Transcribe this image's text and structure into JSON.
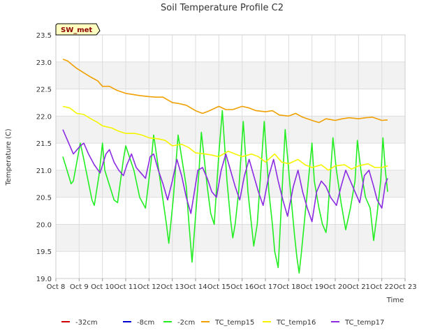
{
  "chart_data": {
    "type": "line",
    "title": "Soil Temperature Profile C2",
    "xlabel": "Time",
    "ylabel": "Temperature (C)",
    "site_label": "SW_met",
    "xlim": [
      8,
      23
    ],
    "ylim": [
      19.0,
      23.5
    ],
    "x_ticks": [
      {
        "value": 8,
        "label": "Oct 8"
      },
      {
        "value": 9,
        "label": "Oct 9"
      },
      {
        "value": 10,
        "label": "Oct 10"
      },
      {
        "value": 11,
        "label": "Oct 11"
      },
      {
        "value": 12,
        "label": "Oct 12"
      },
      {
        "value": 13,
        "label": "Oct 13"
      },
      {
        "value": 14,
        "label": "Oct 14"
      },
      {
        "value": 15,
        "label": "Oct 15"
      },
      {
        "value": 16,
        "label": "Oct 16"
      },
      {
        "value": 17,
        "label": "Oct 17"
      },
      {
        "value": 18,
        "label": "Oct 18"
      },
      {
        "value": 19,
        "label": "Oct 19"
      },
      {
        "value": 20,
        "label": "Oct 20"
      },
      {
        "value": 21,
        "label": "Oct 21"
      },
      {
        "value": 22,
        "label": "Oct 22"
      },
      {
        "value": 23,
        "label": "Oct 23"
      }
    ],
    "y_ticks": [
      {
        "value": 19.0,
        "label": "19.0"
      },
      {
        "value": 19.5,
        "label": "19.5"
      },
      {
        "value": 20.0,
        "label": "20.0"
      },
      {
        "value": 20.5,
        "label": "20.5"
      },
      {
        "value": 21.0,
        "label": "21.0"
      },
      {
        "value": 21.5,
        "label": "21.5"
      },
      {
        "value": 22.0,
        "label": "22.0"
      },
      {
        "value": 22.5,
        "label": "22.5"
      },
      {
        "value": 23.0,
        "label": "23.0"
      },
      {
        "value": 23.5,
        "label": "23.5"
      }
    ],
    "grid": true,
    "legend_position": "bottom",
    "series": [
      {
        "name": "-32cm",
        "color": "#cc0000",
        "x": [],
        "y": []
      },
      {
        "name": "-8cm",
        "color": "#0000cc",
        "x": [],
        "y": []
      },
      {
        "name": "-2cm",
        "color": "#22ee22",
        "x": [
          8.3,
          8.55,
          8.65,
          8.75,
          9.05,
          9.2,
          9.55,
          9.65,
          9.85,
          10.0,
          10.1,
          10.5,
          10.65,
          10.9,
          11.0,
          11.35,
          11.6,
          11.85,
          12.1,
          12.2,
          12.55,
          12.75,
          12.85,
          13.05,
          13.25,
          13.6,
          13.7,
          13.85,
          14.15,
          14.25,
          14.5,
          14.65,
          14.8,
          15.0,
          15.15,
          15.35,
          15.5,
          15.6,
          15.7,
          15.85,
          16.05,
          16.25,
          16.4,
          16.5,
          16.65,
          16.95,
          17.15,
          17.3,
          17.4,
          17.55,
          17.85,
          18.1,
          18.25,
          18.35,
          18.45,
          18.55,
          19.0,
          19.1,
          19.3,
          19.45,
          19.6,
          19.65,
          19.9,
          20.05,
          20.25,
          20.45,
          20.65,
          20.85,
          20.95,
          21.1,
          21.3,
          21.5,
          21.65,
          21.8,
          21.95,
          22.05,
          22.15,
          22.25
        ],
        "y": [
          21.25,
          20.9,
          20.75,
          20.8,
          21.5,
          21.2,
          20.45,
          20.35,
          20.9,
          21.5,
          21.0,
          20.45,
          20.4,
          21.2,
          21.45,
          21.0,
          20.5,
          20.3,
          21.2,
          21.65,
          20.6,
          20.0,
          19.65,
          20.5,
          21.65,
          20.7,
          20.1,
          19.3,
          21.0,
          21.7,
          20.7,
          20.2,
          20.0,
          21.3,
          22.1,
          20.8,
          20.1,
          19.75,
          20.0,
          20.6,
          21.9,
          20.6,
          20.0,
          19.6,
          20.0,
          21.9,
          20.6,
          20.0,
          19.5,
          19.2,
          21.75,
          20.5,
          19.8,
          19.4,
          19.1,
          19.5,
          21.5,
          20.8,
          20.3,
          20.0,
          19.85,
          20.0,
          21.6,
          21.0,
          20.4,
          19.9,
          20.3,
          20.8,
          21.55,
          21.0,
          20.5,
          20.3,
          19.7,
          20.2,
          20.8,
          21.6,
          21.0,
          20.6
        ]
      },
      {
        "name": "TC_temp15",
        "color": "#f0a000",
        "x": [
          8.3,
          8.5,
          8.7,
          8.9,
          9.2,
          9.5,
          9.8,
          10.0,
          10.3,
          10.6,
          11.0,
          11.3,
          11.6,
          12.0,
          12.3,
          12.6,
          13.0,
          13.3,
          13.6,
          14.0,
          14.3,
          14.6,
          15.0,
          15.3,
          15.6,
          16.0,
          16.3,
          16.6,
          17.0,
          17.3,
          17.6,
          18.0,
          18.3,
          18.6,
          19.0,
          19.3,
          19.6,
          20.0,
          20.3,
          20.6,
          21.0,
          21.3,
          21.6,
          22.0,
          22.25
        ],
        "y": [
          23.05,
          23.02,
          22.95,
          22.88,
          22.8,
          22.72,
          22.65,
          22.55,
          22.55,
          22.48,
          22.42,
          22.4,
          22.38,
          22.36,
          22.35,
          22.35,
          22.25,
          22.23,
          22.2,
          22.1,
          22.05,
          22.1,
          22.18,
          22.12,
          22.12,
          22.18,
          22.15,
          22.1,
          22.08,
          22.1,
          22.02,
          22.0,
          22.05,
          21.98,
          21.92,
          21.88,
          21.95,
          21.92,
          21.95,
          21.97,
          21.95,
          21.97,
          21.98,
          21.92,
          21.93
        ]
      },
      {
        "name": "TC_temp16",
        "color": "#f5f500",
        "x": [
          8.3,
          8.6,
          8.9,
          9.2,
          9.5,
          9.8,
          10.0,
          10.4,
          10.7,
          11.0,
          11.4,
          11.7,
          12.0,
          12.4,
          12.7,
          13.0,
          13.4,
          13.7,
          14.0,
          14.4,
          14.7,
          15.0,
          15.4,
          15.7,
          16.0,
          16.4,
          16.7,
          17.0,
          17.4,
          17.7,
          18.0,
          18.4,
          18.7,
          19.0,
          19.4,
          19.7,
          20.0,
          20.4,
          20.7,
          21.0,
          21.4,
          21.7,
          22.0,
          22.25
        ],
        "y": [
          22.18,
          22.15,
          22.05,
          22.03,
          21.95,
          21.88,
          21.82,
          21.78,
          21.72,
          21.68,
          21.68,
          21.65,
          21.6,
          21.58,
          21.55,
          21.45,
          21.48,
          21.42,
          21.32,
          21.3,
          21.28,
          21.25,
          21.35,
          21.3,
          21.25,
          21.3,
          21.25,
          21.15,
          21.3,
          21.15,
          21.12,
          21.2,
          21.1,
          21.05,
          21.1,
          21.0,
          21.08,
          21.1,
          21.02,
          21.08,
          21.12,
          21.05,
          21.05,
          21.08
        ]
      },
      {
        "name": "TC_temp17",
        "color": "#8b2be2",
        "x": [
          8.3,
          8.5,
          8.75,
          9.05,
          9.2,
          9.4,
          9.65,
          9.9,
          10.15,
          10.3,
          10.5,
          10.7,
          10.9,
          11.05,
          11.25,
          11.45,
          11.65,
          11.85,
          12.05,
          12.2,
          12.4,
          12.6,
          12.8,
          13.0,
          13.2,
          13.4,
          13.6,
          13.8,
          14.1,
          14.3,
          14.5,
          14.7,
          14.9,
          15.1,
          15.3,
          15.5,
          15.7,
          15.9,
          16.1,
          16.3,
          16.5,
          16.7,
          16.9,
          17.15,
          17.35,
          17.55,
          17.75,
          17.95,
          18.2,
          18.4,
          18.6,
          18.8,
          19.0,
          19.2,
          19.4,
          19.6,
          19.8,
          20.05,
          20.25,
          20.45,
          20.65,
          20.85,
          21.05,
          21.25,
          21.45,
          21.65,
          21.8,
          22.0,
          22.15,
          22.25
        ],
        "y": [
          21.75,
          21.55,
          21.3,
          21.45,
          21.5,
          21.3,
          21.1,
          20.95,
          21.3,
          21.38,
          21.15,
          21.0,
          20.9,
          21.1,
          21.3,
          21.05,
          20.95,
          20.85,
          21.25,
          21.3,
          21.0,
          20.75,
          20.45,
          20.8,
          21.2,
          20.9,
          20.5,
          20.2,
          21.0,
          21.05,
          20.85,
          20.6,
          20.5,
          21.0,
          21.3,
          21.0,
          20.7,
          20.45,
          20.9,
          21.2,
          20.9,
          20.6,
          20.35,
          20.9,
          21.2,
          20.8,
          20.45,
          20.15,
          20.7,
          21.0,
          20.6,
          20.3,
          20.05,
          20.6,
          20.8,
          20.7,
          20.5,
          20.35,
          20.7,
          21.0,
          20.8,
          20.6,
          20.4,
          20.9,
          21.0,
          20.7,
          20.45,
          20.3,
          20.75,
          20.85
        ]
      }
    ]
  }
}
